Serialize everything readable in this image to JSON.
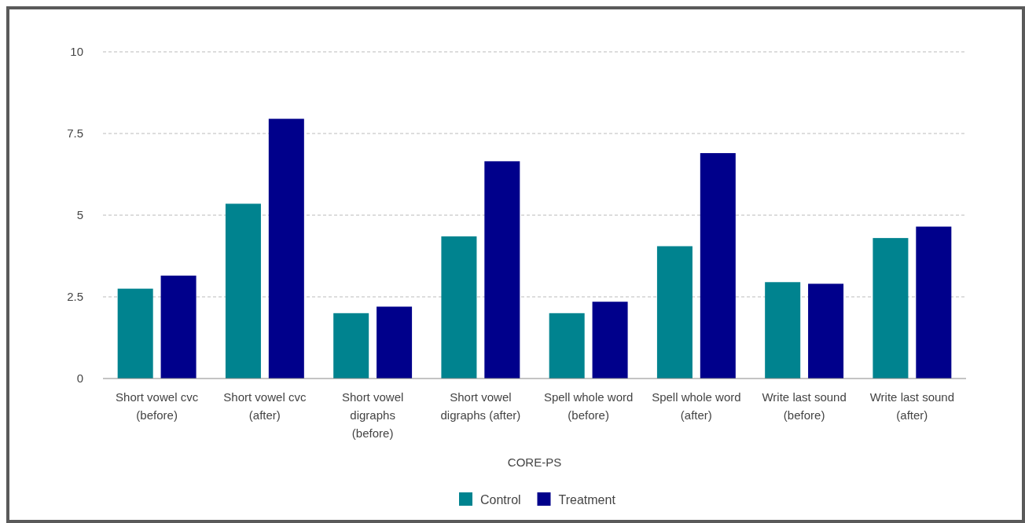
{
  "chart_data": {
    "type": "bar",
    "xlabel": "CORE-PS",
    "categories": [
      "Short vowel cvc (before)",
      "Short vowel cvc (after)",
      "Short vowel digraphs (before)",
      "Short vowel digraphs (after)",
      "Spell whole word (before)",
      "Spell whole word (after)",
      "Write last sound (before)",
      "Write last sound (after)"
    ],
    "series": [
      {
        "name": "Control",
        "color": "#00838f",
        "values": [
          2.75,
          5.35,
          2.0,
          4.35,
          2.0,
          4.05,
          2.95,
          4.3
        ]
      },
      {
        "name": "Treatment",
        "color": "#00008b",
        "values": [
          3.15,
          7.95,
          2.2,
          6.65,
          2.35,
          6.9,
          2.9,
          4.65
        ]
      }
    ],
    "ylim": [
      0,
      10
    ],
    "yticks": [
      0,
      2.5,
      5,
      7.5,
      10
    ],
    "grid": "y",
    "legend": "bottom"
  }
}
